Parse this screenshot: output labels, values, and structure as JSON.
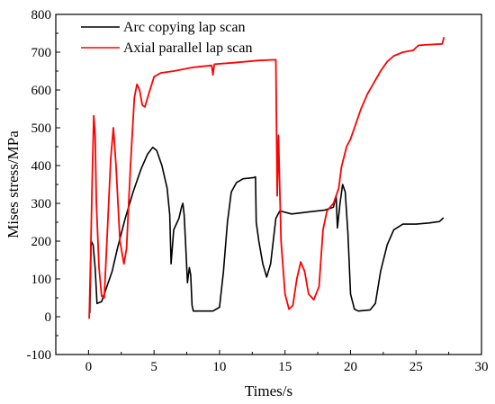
{
  "chart_data": {
    "type": "line",
    "title": "",
    "xlabel": "Times/s",
    "ylabel": "Mises stress/MPa",
    "xlim": [
      -2.5,
      30
    ],
    "ylim": [
      -100,
      800
    ],
    "xticks": [
      0,
      5,
      10,
      15,
      20,
      25,
      30
    ],
    "yticks": [
      -100,
      0,
      100,
      200,
      300,
      400,
      500,
      600,
      700,
      800
    ],
    "grid": false,
    "legend": "top-left",
    "series": [
      {
        "name": "Arc copying lap scan",
        "color": "#000000",
        "points": [
          [
            0.1,
            10
          ],
          [
            0.2,
            200
          ],
          [
            0.35,
            190
          ],
          [
            0.5,
            130
          ],
          [
            0.65,
            35
          ],
          [
            1.0,
            40
          ],
          [
            1.3,
            70
          ],
          [
            1.8,
            120
          ],
          [
            2.2,
            180
          ],
          [
            2.8,
            260
          ],
          [
            3.4,
            330
          ],
          [
            4.0,
            390
          ],
          [
            4.5,
            430
          ],
          [
            4.9,
            448
          ],
          [
            5.2,
            440
          ],
          [
            5.6,
            400
          ],
          [
            6.0,
            340
          ],
          [
            6.2,
            270
          ],
          [
            6.3,
            140
          ],
          [
            6.5,
            230
          ],
          [
            6.9,
            260
          ],
          [
            7.1,
            290
          ],
          [
            7.2,
            300
          ],
          [
            7.3,
            270
          ],
          [
            7.4,
            200
          ],
          [
            7.55,
            90
          ],
          [
            7.7,
            130
          ],
          [
            7.8,
            110
          ],
          [
            7.9,
            30
          ],
          [
            8.0,
            15
          ],
          [
            9.5,
            15
          ],
          [
            10.0,
            25
          ],
          [
            10.3,
            120
          ],
          [
            10.6,
            250
          ],
          [
            10.9,
            330
          ],
          [
            11.3,
            355
          ],
          [
            11.8,
            365
          ],
          [
            12.6,
            368
          ],
          [
            12.75,
            370
          ],
          [
            12.8,
            250
          ],
          [
            13.0,
            200
          ],
          [
            13.3,
            140
          ],
          [
            13.6,
            105
          ],
          [
            13.9,
            140
          ],
          [
            14.3,
            260
          ],
          [
            14.6,
            280
          ],
          [
            15.5,
            272
          ],
          [
            17.0,
            278
          ],
          [
            18.0,
            282
          ],
          [
            18.7,
            290
          ],
          [
            18.9,
            320
          ],
          [
            19.0,
            235
          ],
          [
            19.2,
            300
          ],
          [
            19.4,
            350
          ],
          [
            19.6,
            330
          ],
          [
            19.8,
            220
          ],
          [
            20.0,
            60
          ],
          [
            20.3,
            20
          ],
          [
            20.6,
            15
          ],
          [
            21.5,
            18
          ],
          [
            21.9,
            35
          ],
          [
            22.3,
            120
          ],
          [
            22.8,
            190
          ],
          [
            23.3,
            230
          ],
          [
            24.0,
            245
          ],
          [
            25.0,
            245
          ],
          [
            26.0,
            248
          ],
          [
            26.8,
            252
          ],
          [
            27.1,
            262
          ]
        ]
      },
      {
        "name": "Axial parallel lap scan",
        "color": "#ff0000",
        "points": [
          [
            0.05,
            -5
          ],
          [
            0.15,
            150
          ],
          [
            0.3,
            400
          ],
          [
            0.4,
            532
          ],
          [
            0.5,
            480
          ],
          [
            0.6,
            300
          ],
          [
            0.8,
            130
          ],
          [
            1.0,
            55
          ],
          [
            1.2,
            50
          ],
          [
            1.4,
            200
          ],
          [
            1.7,
            420
          ],
          [
            1.9,
            500
          ],
          [
            2.1,
            400
          ],
          [
            2.4,
            200
          ],
          [
            2.7,
            140
          ],
          [
            2.9,
            180
          ],
          [
            3.2,
            400
          ],
          [
            3.5,
            580
          ],
          [
            3.7,
            615
          ],
          [
            3.9,
            600
          ],
          [
            4.1,
            560
          ],
          [
            4.3,
            555
          ],
          [
            4.6,
            590
          ],
          [
            5.0,
            635
          ],
          [
            5.5,
            645
          ],
          [
            6.5,
            650
          ],
          [
            8.0,
            660
          ],
          [
            9.4,
            665
          ],
          [
            9.5,
            640
          ],
          [
            9.6,
            668
          ],
          [
            11.0,
            672
          ],
          [
            13.0,
            678
          ],
          [
            14.3,
            680
          ],
          [
            14.4,
            320
          ],
          [
            14.5,
            480
          ],
          [
            14.7,
            200
          ],
          [
            15.0,
            60
          ],
          [
            15.3,
            20
          ],
          [
            15.6,
            30
          ],
          [
            15.9,
            100
          ],
          [
            16.2,
            145
          ],
          [
            16.5,
            120
          ],
          [
            16.8,
            60
          ],
          [
            17.2,
            45
          ],
          [
            17.6,
            80
          ],
          [
            17.9,
            230
          ],
          [
            18.2,
            280
          ],
          [
            18.7,
            300
          ],
          [
            19.1,
            340
          ],
          [
            19.3,
            395
          ],
          [
            19.7,
            450
          ],
          [
            20.0,
            470
          ],
          [
            20.4,
            510
          ],
          [
            20.8,
            550
          ],
          [
            21.3,
            590
          ],
          [
            21.8,
            620
          ],
          [
            22.3,
            650
          ],
          [
            22.8,
            675
          ],
          [
            23.3,
            690
          ],
          [
            24.0,
            700
          ],
          [
            24.8,
            705
          ],
          [
            25.0,
            712
          ],
          [
            25.2,
            718
          ],
          [
            26.0,
            720
          ],
          [
            27.0,
            722
          ],
          [
            27.15,
            740
          ]
        ]
      }
    ]
  }
}
